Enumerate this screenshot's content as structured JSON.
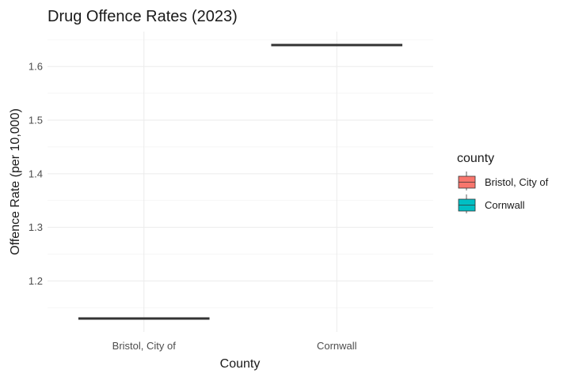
{
  "chart_data": {
    "type": "box",
    "title": "Drug Offence Rates (2023)",
    "xlabel": "County",
    "ylabel": "Offence Rate (per 10,000)",
    "categories": [
      "Bristol, City of",
      "Cornwall"
    ],
    "values": [
      1.13,
      1.64
    ],
    "y_ticks": [
      "1.2",
      "1.3",
      "1.4",
      "1.5",
      "1.6"
    ],
    "ylim": [
      1.105,
      1.665
    ],
    "grid": true,
    "legend": {
      "title": "county",
      "position": "right",
      "entries": [
        "Bristol, City of",
        "Cornwall"
      ]
    },
    "colors": {
      "Bristol, City of": "#f8766d",
      "Cornwall": "#00bfc4"
    }
  }
}
